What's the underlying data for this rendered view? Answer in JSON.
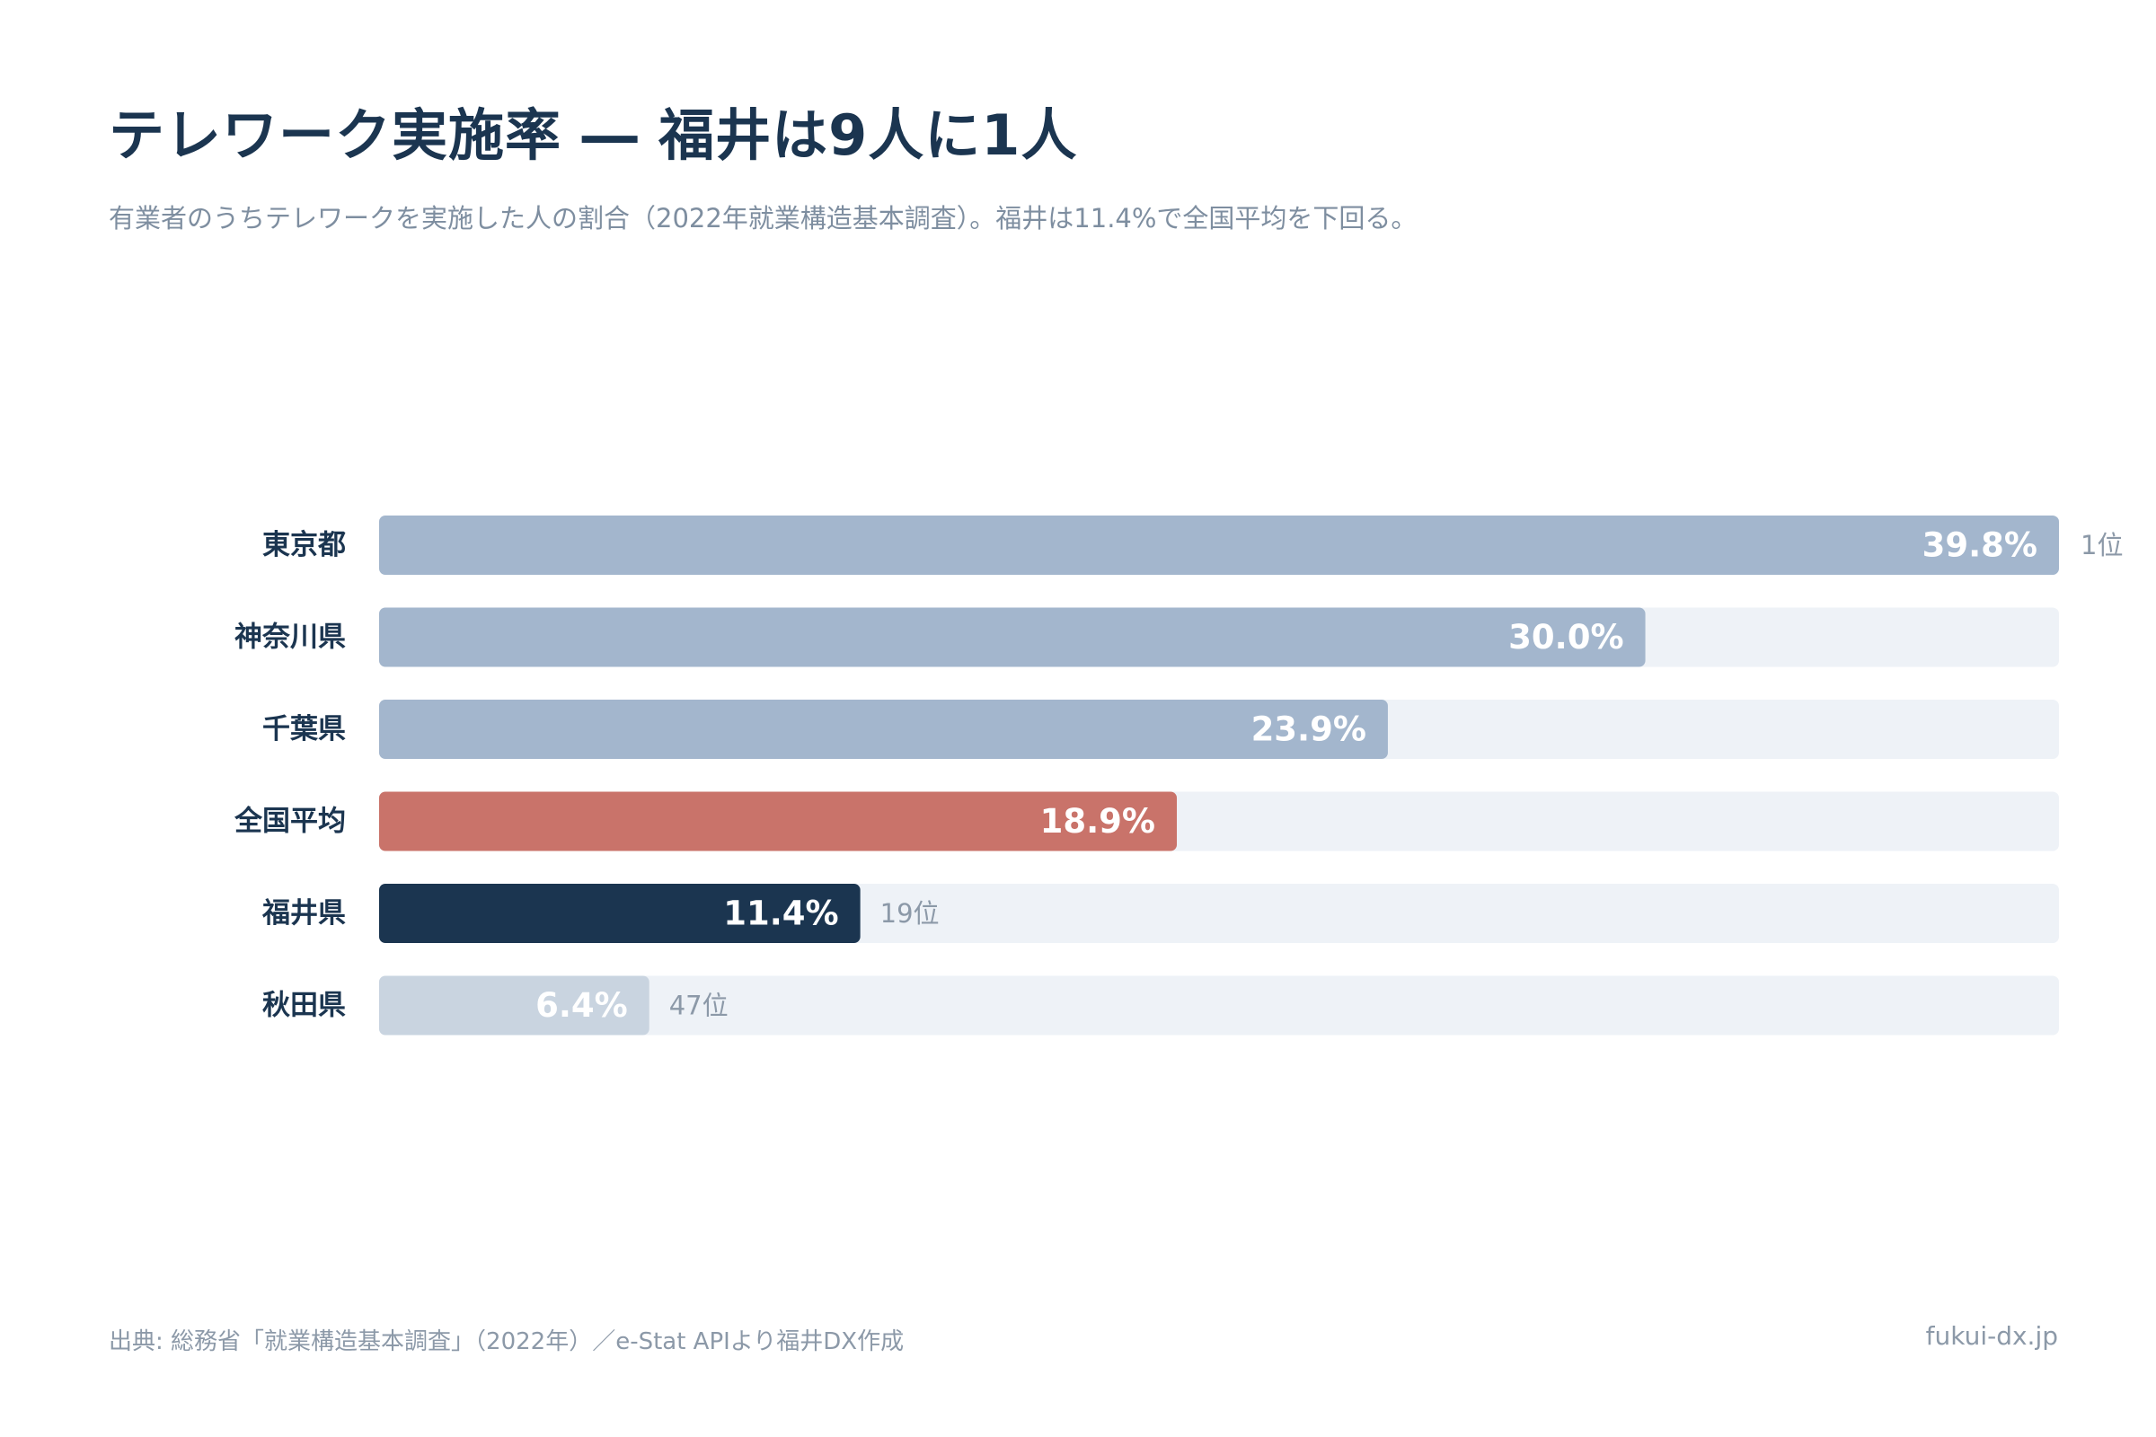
{
  "header": {
    "title": "テレワーク実施率 ― 福井は9人に1人",
    "subtitle": "有業者のうちテレワークを実施した人の割合（2022年就業構造基本調査）。福井は11.4%で全国平均を下回る。"
  },
  "chart_data": {
    "type": "bar",
    "orientation": "horizontal",
    "title": "テレワーク実施率 ― 福井は9人に1人",
    "xlim": [
      0,
      39.8
    ],
    "grid": false,
    "legend": "none",
    "categories": [
      "東京都",
      "神奈川県",
      "千葉県",
      "全国平均",
      "福井県",
      "秋田県"
    ],
    "values": [
      39.8,
      30.0,
      23.9,
      18.9,
      11.4,
      6.4
    ],
    "value_labels": [
      "39.8%",
      "30.0%",
      "23.9%",
      "18.9%",
      "11.4%",
      "6.4%"
    ],
    "ranks": [
      "1位",
      "",
      "",
      "",
      "19位",
      "47位"
    ],
    "colors": [
      "#a3b6cd",
      "#a3b6cd",
      "#a3b6cd",
      "#c9736a",
      "#1b3550",
      "#c9d4e0"
    ],
    "track_color": "#eef2f7"
  },
  "footer": {
    "source": "出典: 総務省「就業構造基本調査」（2022年）／e-Stat APIより福井DX作成",
    "site": "fukui-dx.jp"
  }
}
